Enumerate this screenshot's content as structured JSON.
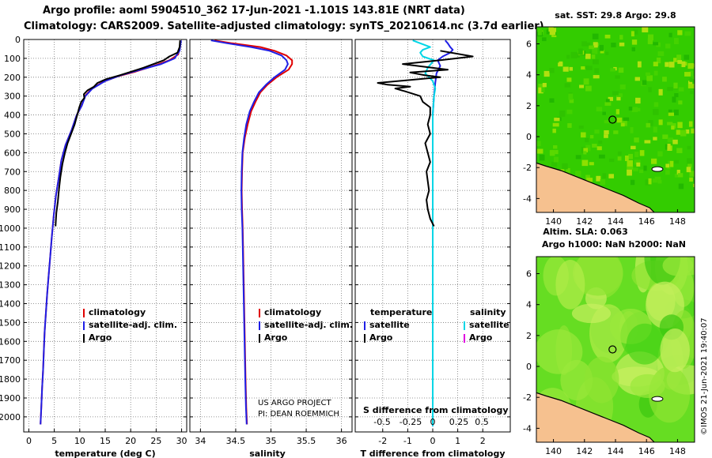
{
  "header": {
    "title_line1": "Argo profile: aoml 5904510_362 17-Jun-2021 -1.101S 143.81E (NRT data)",
    "title_line2": "Climatology: CARS2009. Satellite-adjusted climatology: synTS_20210614.nc (3.7d earlier)"
  },
  "colors": {
    "climatology": "#e00000",
    "satellite_adj": "#1f1fe6",
    "argo": "#000000",
    "salinity_satellite": "#00d6e6",
    "salinity_argo": "#e000e0",
    "land": "#f6c18f",
    "grid": "#777777"
  },
  "credits": {
    "line1": "US ARGO PROJECT",
    "line2": "PI: DEAN ROEMMICH"
  },
  "chart_data": [
    {
      "type": "line",
      "name": "temperature",
      "xlabel": "temperature (deg C)",
      "ylabel": "",
      "xlim": [
        -1,
        31
      ],
      "ylim": [
        2080,
        0
      ],
      "xticks": [
        0,
        5,
        10,
        15,
        20,
        25,
        30
      ],
      "yticks": [
        0,
        100,
        200,
        300,
        400,
        500,
        600,
        700,
        800,
        900,
        1000,
        1100,
        1200,
        1300,
        1400,
        1500,
        1600,
        1700,
        1800,
        1900,
        2000
      ],
      "grid": true,
      "legend": {
        "placement": "lower-center",
        "entries": [
          "climatology",
          "satellite-adj. clim.",
          "Argo"
        ]
      },
      "series": [
        {
          "name": "climatology",
          "color_key": "climatology",
          "points": [
            [
              29.8,
              5
            ],
            [
              29.7,
              40
            ],
            [
              29.3,
              80
            ],
            [
              27.6,
              110
            ],
            [
              24.5,
              140
            ],
            [
              21,
              170
            ],
            [
              17.5,
              195
            ],
            [
              14.5,
              225
            ],
            [
              12.2,
              265
            ],
            [
              11,
              300
            ],
            [
              10.4,
              350
            ],
            [
              9.4,
              400
            ],
            [
              8.4,
              480
            ],
            [
              7.2,
              560
            ],
            [
              6.4,
              640
            ],
            [
              5.9,
              730
            ],
            [
              5.3,
              830
            ],
            [
              4.9,
              930
            ],
            [
              4.5,
              1050
            ],
            [
              4.2,
              1150
            ],
            [
              3.9,
              1250
            ],
            [
              3.6,
              1350
            ],
            [
              3.35,
              1450
            ],
            [
              3.1,
              1550
            ],
            [
              2.95,
              1650
            ],
            [
              2.8,
              1750
            ],
            [
              2.6,
              1850
            ],
            [
              2.45,
              1950
            ],
            [
              2.3,
              2040
            ]
          ]
        },
        {
          "name": "satellite-adj. clim.",
          "color_key": "satellite_adj",
          "points": [
            [
              29.9,
              5
            ],
            [
              29.6,
              60
            ],
            [
              28.6,
              100
            ],
            [
              26,
              130
            ],
            [
              22,
              160
            ],
            [
              18,
              190
            ],
            [
              15,
              220
            ],
            [
              12.5,
              260
            ],
            [
              11.1,
              300
            ],
            [
              10.4,
              350
            ],
            [
              9.4,
              400
            ],
            [
              8.4,
              480
            ],
            [
              7.2,
              560
            ],
            [
              6.4,
              640
            ],
            [
              5.9,
              730
            ],
            [
              5.3,
              830
            ],
            [
              4.9,
              930
            ],
            [
              4.5,
              1050
            ],
            [
              4.2,
              1150
            ],
            [
              3.9,
              1250
            ],
            [
              3.6,
              1350
            ],
            [
              3.35,
              1450
            ],
            [
              3.1,
              1550
            ],
            [
              2.95,
              1650
            ],
            [
              2.8,
              1750
            ],
            [
              2.6,
              1850
            ],
            [
              2.45,
              1950
            ],
            [
              2.3,
              2040
            ]
          ]
        },
        {
          "name": "Argo",
          "color_key": "argo",
          "points": [
            [
              29.7,
              5
            ],
            [
              29.6,
              40
            ],
            [
              29.2,
              70
            ],
            [
              27.6,
              90
            ],
            [
              26.5,
              110
            ],
            [
              24.5,
              130
            ],
            [
              22.5,
              150
            ],
            [
              20.2,
              170
            ],
            [
              17.8,
              190
            ],
            [
              15.2,
              210
            ],
            [
              13.5,
              230
            ],
            [
              12.8,
              250
            ],
            [
              11.5,
              270
            ],
            [
              10.8,
              290
            ],
            [
              10.9,
              310
            ],
            [
              10.3,
              330
            ],
            [
              9.9,
              360
            ],
            [
              9.5,
              400
            ],
            [
              9,
              450
            ],
            [
              8.3,
              500
            ],
            [
              7.6,
              550
            ],
            [
              7.1,
              600
            ],
            [
              6.6,
              660
            ],
            [
              6.2,
              730
            ],
            [
              5.9,
              800
            ],
            [
              5.7,
              860
            ],
            [
              5.4,
              920
            ],
            [
              5.3,
              960
            ],
            [
              5.25,
              990
            ]
          ]
        }
      ]
    },
    {
      "type": "line",
      "name": "salinity",
      "xlabel": "salinity",
      "ylabel": "",
      "xlim": [
        33.85,
        36.15
      ],
      "ylim": [
        2080,
        0
      ],
      "xticks": [
        34,
        34.5,
        35,
        35.5,
        36
      ],
      "yticks": [
        0,
        100,
        200,
        300,
        400,
        500,
        600,
        700,
        800,
        900,
        1000,
        1100,
        1200,
        1300,
        1400,
        1500,
        1600,
        1700,
        1800,
        1900,
        2000
      ],
      "grid": true,
      "legend": {
        "placement": "lower-center",
        "entries": [
          "climatology",
          "satellite-adj. clim.",
          "Argo"
        ]
      },
      "series": [
        {
          "name": "climatology",
          "color_key": "climatology",
          "points": [
            [
              34.2,
              5
            ],
            [
              34.45,
              20
            ],
            [
              34.85,
              40
            ],
            [
              35.05,
              60
            ],
            [
              35.22,
              85
            ],
            [
              35.3,
              110
            ],
            [
              35.3,
              130
            ],
            [
              35.25,
              160
            ],
            [
              35.08,
              200
            ],
            [
              34.95,
              240
            ],
            [
              34.85,
              280
            ],
            [
              34.78,
              330
            ],
            [
              34.72,
              380
            ],
            [
              34.67,
              450
            ],
            [
              34.63,
              520
            ],
            [
              34.6,
              600
            ],
            [
              34.59,
              700
            ],
            [
              34.585,
              800
            ],
            [
              34.59,
              900
            ],
            [
              34.6,
              1000
            ],
            [
              34.61,
              1200
            ],
            [
              34.62,
              1400
            ],
            [
              34.63,
              1600
            ],
            [
              34.64,
              1800
            ],
            [
              34.65,
              1950
            ],
            [
              34.66,
              2040
            ]
          ]
        },
        {
          "name": "satellite-adj. clim.",
          "color_key": "satellite_adj",
          "points": [
            [
              34.15,
              5
            ],
            [
              34.38,
              20
            ],
            [
              34.72,
              40
            ],
            [
              34.98,
              60
            ],
            [
              35.15,
              85
            ],
            [
              35.22,
              110
            ],
            [
              35.24,
              130
            ],
            [
              35.2,
              160
            ],
            [
              35.05,
              200
            ],
            [
              34.93,
              240
            ],
            [
              34.83,
              280
            ],
            [
              34.76,
              330
            ],
            [
              34.7,
              380
            ],
            [
              34.65,
              450
            ],
            [
              34.62,
              520
            ],
            [
              34.595,
              600
            ],
            [
              34.585,
              700
            ],
            [
              34.58,
              800
            ],
            [
              34.585,
              900
            ],
            [
              34.595,
              1000
            ],
            [
              34.605,
              1200
            ],
            [
              34.615,
              1400
            ],
            [
              34.625,
              1600
            ],
            [
              34.635,
              1800
            ],
            [
              34.645,
              1950
            ],
            [
              34.655,
              2040
            ]
          ]
        }
      ]
    },
    {
      "type": "line",
      "name": "difference",
      "xlabel": "T difference from climatology",
      "ylabel": "",
      "xlim": [
        -3.1,
        3.1
      ],
      "ylim": [
        2080,
        0
      ],
      "xticks": [
        -2,
        -1,
        0,
        1,
        2
      ],
      "xtick_labels": [
        "-2",
        "-1",
        "0",
        "1",
        "2"
      ],
      "secondary_xlabel": "S difference from climatology",
      "secondary_xticks": [
        "-0.5",
        "-0.25",
        "0",
        "0.25",
        "0.5"
      ],
      "yticks": [
        0,
        100,
        200,
        300,
        400,
        500,
        600,
        700,
        800,
        900,
        1000,
        1100,
        1200,
        1300,
        1400,
        1500,
        1600,
        1700,
        1800,
        1900,
        2000
      ],
      "grid": true,
      "legend": {
        "placement": "lower-center",
        "temperature_header": "temperature",
        "salinity_header": "salinity",
        "entries": [
          "satellite",
          "Argo",
          "satellite",
          "Argo"
        ]
      },
      "series": [
        {
          "name": "temperature satellite",
          "color_key": "satellite_adj",
          "points": [
            [
              0.5,
              5
            ],
            [
              0.6,
              20
            ],
            [
              0.7,
              40
            ],
            [
              0.8,
              55
            ],
            [
              0.7,
              70
            ],
            [
              0.4,
              90
            ],
            [
              0.2,
              110
            ],
            [
              0.3,
              140
            ],
            [
              0.15,
              180
            ],
            [
              0.1,
              230
            ],
            [
              0.05,
              300
            ],
            [
              0,
              400
            ],
            [
              0,
              2050
            ]
          ]
        },
        {
          "name": "salinity satellite",
          "color_key": "salinity_satellite",
          "points": [
            [
              -0.8,
              5
            ],
            [
              -0.5,
              20
            ],
            [
              -0.1,
              40
            ],
            [
              -0.4,
              55
            ],
            [
              -0.5,
              70
            ],
            [
              -0.4,
              90
            ],
            [
              0.05,
              110
            ],
            [
              -0.2,
              150
            ],
            [
              -0.3,
              180
            ],
            [
              0,
              220
            ],
            [
              0.1,
              260
            ],
            [
              0.05,
              300
            ],
            [
              0,
              400
            ],
            [
              0,
              2050
            ]
          ]
        },
        {
          "name": "temperature Argo",
          "color_key": "argo",
          "points": [
            [
              0.3,
              60
            ],
            [
              1.6,
              90
            ],
            [
              0.3,
              110
            ],
            [
              -1.2,
              130
            ],
            [
              0.6,
              160
            ],
            [
              -0.9,
              175
            ],
            [
              -0.3,
              190
            ],
            [
              0.3,
              200
            ],
            [
              -2.2,
              230
            ],
            [
              -1.8,
              240
            ],
            [
              -0.9,
              250
            ],
            [
              -1.5,
              260
            ],
            [
              -1.1,
              275
            ],
            [
              -0.5,
              300
            ],
            [
              -0.4,
              330
            ],
            [
              -0.1,
              360
            ],
            [
              -0.1,
              400
            ],
            [
              -0.2,
              450
            ],
            [
              -0.1,
              500
            ],
            [
              -0.3,
              550
            ],
            [
              -0.2,
              600
            ],
            [
              -0.1,
              650
            ],
            [
              -0.25,
              700
            ],
            [
              -0.2,
              750
            ],
            [
              -0.15,
              800
            ],
            [
              -0.25,
              850
            ],
            [
              -0.2,
              900
            ],
            [
              -0.1,
              950
            ],
            [
              0.05,
              990
            ]
          ]
        }
      ]
    },
    {
      "type": "heatmap",
      "name": "sst_map",
      "title": "sat. SST: 29.8 Argo: 29.8",
      "xticks": [
        140,
        142,
        144,
        146,
        148
      ],
      "yticks": [
        6,
        4,
        2,
        0,
        -2,
        -4
      ],
      "xlim": [
        138.9,
        149.1
      ],
      "ylim": [
        -4.9,
        7.1
      ],
      "marker": {
        "lon": 143.81,
        "lat": 1.1
      }
    },
    {
      "type": "heatmap",
      "name": "sla_map",
      "title": "Altim. SLA: 0.063",
      "subtitle": "Argo h1000: NaN h2000: NaN",
      "xticks": [
        140,
        142,
        144,
        146,
        148
      ],
      "yticks": [
        6,
        4,
        2,
        0,
        -2,
        -4
      ],
      "xlim": [
        138.9,
        149.1
      ],
      "ylim": [
        -4.9,
        7.1
      ],
      "marker": {
        "lon": 143.81,
        "lat": 1.1
      },
      "side_label": "©IMOS 21-Jun-2021 19:40:07"
    }
  ]
}
